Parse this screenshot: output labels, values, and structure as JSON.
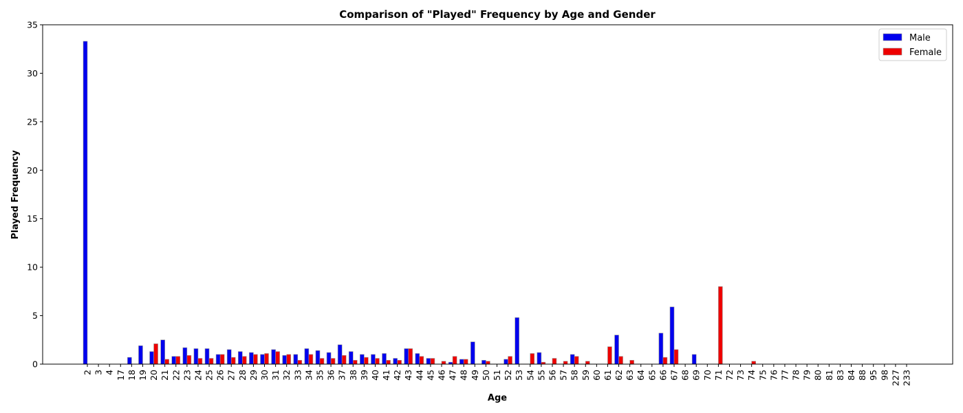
{
  "chart_data": {
    "type": "bar",
    "title": "Comparison of \"Played\" Frequency by Age and Gender",
    "xlabel": "Age",
    "ylabel": "Played Frequency",
    "ylim": [
      0,
      35
    ],
    "yticks": [
      0,
      5,
      10,
      15,
      20,
      25,
      30,
      35
    ],
    "grid": false,
    "legend_position": "top-right",
    "categories": [
      "2",
      "3",
      "4",
      "17",
      "18",
      "19",
      "20",
      "21",
      "22",
      "23",
      "24",
      "25",
      "26",
      "27",
      "28",
      "29",
      "30",
      "31",
      "32",
      "33",
      "34",
      "35",
      "36",
      "37",
      "38",
      "39",
      "40",
      "41",
      "42",
      "43",
      "44",
      "45",
      "46",
      "47",
      "48",
      "49",
      "50",
      "51",
      "52",
      "53",
      "54",
      "55",
      "56",
      "57",
      "58",
      "59",
      "60",
      "61",
      "62",
      "63",
      "64",
      "65",
      "66",
      "67",
      "68",
      "69",
      "70",
      "71",
      "72",
      "73",
      "74",
      "75",
      "76",
      "77",
      "78",
      "79",
      "80",
      "81",
      "83",
      "84",
      "88",
      "95",
      "98",
      "227",
      "233"
    ],
    "series": [
      {
        "name": "Male",
        "color": "#0000ee",
        "values": [
          33.3,
          0,
          0,
          0,
          0.7,
          1.9,
          1.3,
          2.5,
          0.8,
          1.7,
          1.6,
          1.6,
          1.0,
          1.5,
          1.3,
          1.2,
          1.0,
          1.5,
          0.9,
          1.0,
          1.6,
          1.4,
          1.2,
          2.0,
          1.3,
          1.0,
          1.0,
          1.1,
          0.6,
          1.6,
          1.1,
          0.6,
          0,
          0.2,
          0.5,
          2.3,
          0.4,
          0,
          0.5,
          4.8,
          0,
          1.2,
          0,
          0,
          1.0,
          0,
          0,
          0,
          3.0,
          0,
          0,
          0,
          3.2,
          5.9,
          0,
          1.0,
          0,
          0,
          0,
          0,
          0,
          0,
          0,
          0,
          0,
          0,
          0,
          0,
          0,
          0,
          0,
          0,
          0,
          0,
          0
        ]
      },
      {
        "name": "Female",
        "color": "#ee0000",
        "values": [
          0,
          0,
          0,
          0,
          0,
          0,
          2.1,
          0.5,
          0.8,
          0.9,
          0.6,
          0.6,
          1.0,
          0.7,
          0.8,
          1.0,
          1.1,
          1.3,
          1.0,
          0.4,
          1.0,
          0.6,
          0.6,
          0.9,
          0.4,
          0.7,
          0.6,
          0.4,
          0.4,
          1.6,
          0.8,
          0.6,
          0.3,
          0.8,
          0.5,
          0,
          0.3,
          0,
          0.8,
          0,
          1.1,
          0.2,
          0.6,
          0.3,
          0.8,
          0.3,
          0,
          1.8,
          0.8,
          0.4,
          0,
          0,
          0.7,
          1.5,
          0,
          0,
          0,
          8.0,
          0,
          0,
          0.3,
          0,
          0,
          0,
          0,
          0,
          0,
          0,
          0,
          0,
          0,
          0,
          0,
          0,
          0
        ]
      }
    ]
  }
}
